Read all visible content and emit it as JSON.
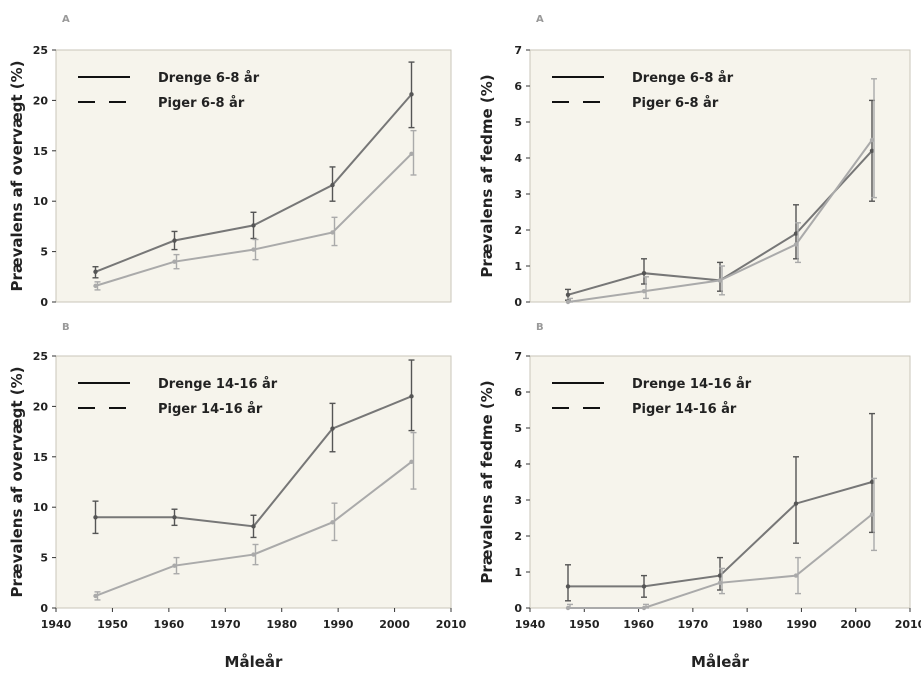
{
  "chart_data": [
    {
      "type": "line",
      "panel_letter": "A",
      "ylabel": "Prævalens af overvægt (%)",
      "xlabel": "",
      "ylim": [
        0,
        25
      ],
      "yticks": [
        "0",
        "5",
        "10",
        "15",
        "20",
        "25"
      ],
      "legend": {
        "placement": "top-left"
      },
      "series": [
        {
          "name": "Drenge 6-8 år",
          "style": "solid",
          "color": "#777777",
          "x": [
            1947,
            1961,
            1975,
            1989,
            2003
          ],
          "y": [
            3.0,
            6.1,
            7.6,
            11.6,
            20.6
          ],
          "err_low": [
            2.4,
            5.2,
            6.3,
            10.0,
            17.3
          ],
          "err_high": [
            3.5,
            7.0,
            8.9,
            13.4,
            23.8
          ]
        },
        {
          "name": "Piger 6-8 år",
          "style": "dashed",
          "color": "#aaaaaa",
          "x": [
            1947,
            1961,
            1975,
            1989,
            2003
          ],
          "y": [
            1.6,
            4.0,
            5.2,
            6.9,
            14.7
          ],
          "err_low": [
            1.2,
            3.3,
            4.2,
            5.6,
            12.6
          ],
          "err_high": [
            2.0,
            4.7,
            6.2,
            8.4,
            17.0
          ]
        }
      ]
    },
    {
      "type": "line",
      "panel_letter": "A",
      "ylabel": "Prævalens af fedme (%)",
      "xlabel": "",
      "ylim": [
        0,
        7
      ],
      "yticks": [
        "0",
        "1",
        "2",
        "3",
        "4",
        "5",
        "6",
        "7"
      ],
      "legend": {
        "placement": "top-left"
      },
      "series": [
        {
          "name": "Drenge 6-8 år",
          "style": "solid",
          "color": "#777777",
          "x": [
            1947,
            1961,
            1975,
            1989,
            2003
          ],
          "y": [
            0.2,
            0.8,
            0.6,
            1.9,
            4.2
          ],
          "err_low": [
            0.05,
            0.5,
            0.3,
            1.2,
            2.8
          ],
          "err_high": [
            0.35,
            1.2,
            1.1,
            2.7,
            5.6
          ]
        },
        {
          "name": "Piger 6-8 år",
          "style": "dashed",
          "color": "#aaaaaa",
          "x": [
            1947,
            1961,
            1975,
            1989,
            2003
          ],
          "y": [
            0.0,
            0.3,
            0.6,
            1.6,
            4.5
          ],
          "err_low": [
            0.0,
            0.1,
            0.2,
            1.1,
            2.9
          ],
          "err_high": [
            0.1,
            0.7,
            1.0,
            2.2,
            6.2
          ]
        }
      ]
    },
    {
      "type": "line",
      "panel_letter": "B",
      "ylabel": "Prævalens af overvægt (%)",
      "xlabel": "Måleår",
      "ylim": [
        0,
        25
      ],
      "yticks": [
        "0",
        "5",
        "10",
        "15",
        "20",
        "25"
      ],
      "xticks": [
        "1940",
        "1950",
        "1960",
        "1970",
        "1980",
        "1990",
        "2000",
        "2010"
      ],
      "legend": {
        "placement": "top-left"
      },
      "series": [
        {
          "name": "Drenge 14-16 år",
          "style": "solid",
          "color": "#777777",
          "x": [
            1947,
            1961,
            1975,
            1989,
            2003
          ],
          "y": [
            9.0,
            9.0,
            8.1,
            17.8,
            21.0
          ],
          "err_low": [
            7.4,
            8.2,
            7.0,
            15.5,
            17.6
          ],
          "err_high": [
            10.6,
            9.8,
            9.2,
            20.3,
            24.6
          ]
        },
        {
          "name": "Piger 14-16 år",
          "style": "dashed",
          "color": "#aaaaaa",
          "x": [
            1947,
            1961,
            1975,
            1989,
            2003
          ],
          "y": [
            1.2,
            4.2,
            5.3,
            8.5,
            14.5
          ],
          "err_low": [
            0.8,
            3.4,
            4.3,
            6.7,
            11.8
          ],
          "err_high": [
            1.6,
            5.0,
            6.3,
            10.4,
            17.4
          ]
        }
      ]
    },
    {
      "type": "line",
      "panel_letter": "B",
      "ylabel": "Prævalens af fedme (%)",
      "xlabel": "Måleår",
      "ylim": [
        0,
        7
      ],
      "yticks": [
        "0",
        "1",
        "2",
        "3",
        "4",
        "5",
        "6",
        "7"
      ],
      "xticks": [
        "1940",
        "1950",
        "1960",
        "1970",
        "1980",
        "1990",
        "2000",
        "2010"
      ],
      "legend": {
        "placement": "top-left"
      },
      "series": [
        {
          "name": "Drenge 14-16 år",
          "style": "solid",
          "color": "#777777",
          "x": [
            1947,
            1961,
            1975,
            1989,
            2003
          ],
          "y": [
            0.6,
            0.6,
            0.9,
            2.9,
            3.5
          ],
          "err_low": [
            0.2,
            0.3,
            0.5,
            1.8,
            2.1
          ],
          "err_high": [
            1.2,
            0.9,
            1.4,
            4.2,
            5.4
          ]
        },
        {
          "name": "Piger 14-16 år",
          "style": "dashed",
          "color": "#aaaaaa",
          "x": [
            1947,
            1961,
            1975,
            1989,
            2003
          ],
          "y": [
            0.0,
            0.0,
            0.7,
            0.9,
            2.6
          ],
          "err_low": [
            0.0,
            0.0,
            0.4,
            0.4,
            1.6
          ],
          "err_high": [
            0.1,
            0.1,
            1.1,
            1.4,
            3.6
          ]
        }
      ]
    }
  ]
}
